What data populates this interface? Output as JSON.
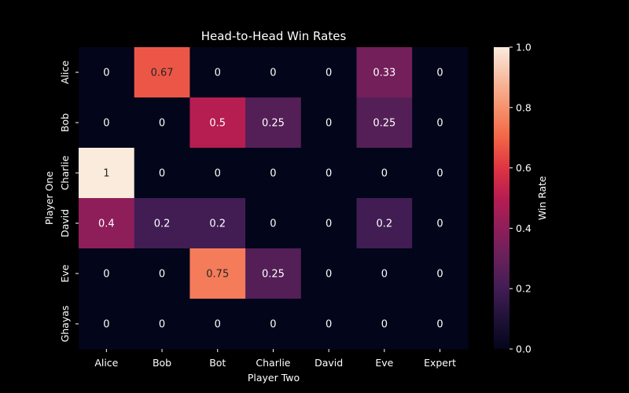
{
  "chart_data": {
    "type": "heatmap",
    "title": "Head-to-Head Win Rates",
    "xlabel": "Player Two",
    "ylabel": "Player One",
    "x_categories": [
      "Alice",
      "Bob",
      "Bot",
      "Charlie",
      "David",
      "Eve",
      "Expert"
    ],
    "y_categories": [
      "Alice",
      "Bob",
      "Charlie",
      "David",
      "Eve",
      "Ghayas"
    ],
    "values": [
      [
        0,
        0.67,
        0,
        0,
        0,
        0.33,
        0
      ],
      [
        0,
        0,
        0.5,
        0.25,
        0,
        0.25,
        0
      ],
      [
        1,
        0,
        0,
        0,
        0,
        0,
        0
      ],
      [
        0.4,
        0.2,
        0.2,
        0,
        0,
        0.2,
        0
      ],
      [
        0,
        0,
        0.75,
        0.25,
        0,
        0,
        0
      ],
      [
        0,
        0,
        0,
        0,
        0,
        0,
        0
      ]
    ],
    "value_labels": [
      [
        "0",
        "0.67",
        "0",
        "0",
        "0",
        "0.33",
        "0"
      ],
      [
        "0",
        "0",
        "0.5",
        "0.25",
        "0",
        "0.25",
        "0"
      ],
      [
        "1",
        "0",
        "0",
        "0",
        "0",
        "0",
        "0"
      ],
      [
        "0.4",
        "0.2",
        "0.2",
        "0",
        "0",
        "0.2",
        "0"
      ],
      [
        "0",
        "0",
        "0.75",
        "0.25",
        "0",
        "0",
        "0"
      ],
      [
        "0",
        "0",
        "0",
        "0",
        "0",
        "0",
        "0"
      ]
    ],
    "colorbar": {
      "label": "Win Rate",
      "range": [
        0,
        1
      ],
      "ticks": [
        "0.0",
        "0.2",
        "0.4",
        "0.6",
        "0.8",
        "1.0"
      ],
      "colormap": "rocket"
    },
    "grid": false
  }
}
